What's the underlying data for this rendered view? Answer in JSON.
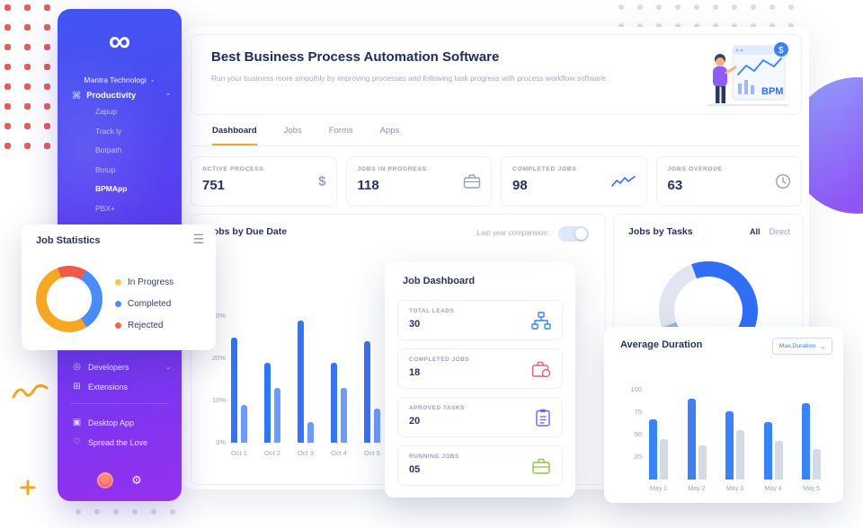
{
  "decor": {
    "dot_red": "#ee5a5a",
    "dot_gray": "#d9dde4",
    "accent_orange": "#f5a623",
    "primary_blue": "#2f6ef5",
    "sidebar_gradient": [
      "#4156f2",
      "#9531ef"
    ],
    "blob_gradient": [
      "#93a6ff",
      "#8f55f5"
    ]
  },
  "sidebar": {
    "brand": "Mantra Technologi",
    "productivity": {
      "label": "Productivity",
      "items": [
        "Zapup",
        "Track.ly",
        "Botpath",
        "Botup",
        "BPMApp",
        "PBX+"
      ],
      "active_item": "BPMApp"
    },
    "links": {
      "developers": "Developers",
      "extensions": "Extensions",
      "desktop_app": "Desktop App",
      "spread_the_love": "Spread the Love"
    }
  },
  "header": {
    "title": "Best Business Process Automation Software",
    "subtitle": "Run your business more smoothly by improving processes and following task progress with process workflow software.",
    "illustration_label": "BPM"
  },
  "tabs": [
    {
      "label": "Dashboard",
      "active": true
    },
    {
      "label": "Jobs",
      "active": false
    },
    {
      "label": "Forms",
      "active": false
    },
    {
      "label": "Apps",
      "active": false
    }
  ],
  "stats": [
    {
      "label": "ACTIVE PROCESS",
      "value": "751",
      "icon": "dollar-icon"
    },
    {
      "label": "JOBS IN PROGRESS",
      "value": "118",
      "icon": "briefcase-icon"
    },
    {
      "label": "COMPLETED JOBS",
      "value": "98",
      "icon": "chart-line-icon"
    },
    {
      "label": "JOBS OVERDUE",
      "value": "63",
      "icon": "clock-icon"
    }
  ],
  "jobs_by_due_date": {
    "title": "Jobs by Due Date",
    "toggle_label": "Last year comparision:",
    "toggle_on": true
  },
  "jobs_by_tasks": {
    "title": "Jobs by Tasks",
    "filters": [
      "All",
      "Direct"
    ],
    "active_filter": "All"
  },
  "job_statistics": {
    "title": "Job Statistics",
    "legend": [
      {
        "label": "In Progress",
        "color": "#f7c948"
      },
      {
        "label": "Completed",
        "color": "#4a8df8"
      },
      {
        "label": "Rejected",
        "color": "#f4694b"
      }
    ]
  },
  "job_dashboard": {
    "title": "Job Dashboard",
    "items": [
      {
        "label": "TOTAL LEADS",
        "value": "30",
        "icon": "flow-icon",
        "color": "#3b82f6"
      },
      {
        "label": "COMPLETED JOBS",
        "value": "18",
        "icon": "briefcase-icon",
        "color": "#ee5d6c"
      },
      {
        "label": "APROVED TASKS",
        "value": "20",
        "icon": "checklist-icon",
        "color": "#7b5cf0"
      },
      {
        "label": "RUNNING JOBS",
        "value": "05",
        "icon": "briefcase-icon",
        "color": "#8bc34a"
      }
    ]
  },
  "average_duration": {
    "title": "Average Duration",
    "dropdown_value": "Max.Duration"
  },
  "chart_data": [
    {
      "id": "jobs_by_due_date",
      "type": "bar",
      "title": "Jobs by Due Date",
      "categories": [
        "Oct 1",
        "Oct 2",
        "Oct 3",
        "Oct 4",
        "Oct 5"
      ],
      "series": [
        {
          "name": "current-year",
          "color": "#3575f2",
          "values": [
            25,
            19,
            29,
            19,
            24
          ]
        },
        {
          "name": "last-year",
          "color": "#6d9bf8",
          "values": [
            9,
            13,
            5,
            13,
            8
          ]
        }
      ],
      "y_ticks": [
        30,
        20,
        10,
        0
      ],
      "ylim": [
        0,
        30
      ],
      "ylabel_format": "percent",
      "legend_position": "none",
      "grid": false
    },
    {
      "id": "job_statistics",
      "type": "pie",
      "title": "Job Statistics",
      "start_angle": 30,
      "segments": [
        {
          "label": "Completed",
          "value": 33,
          "color": "#4a8df8"
        },
        {
          "label": "In Progress",
          "value": 53,
          "color": "#f6a723"
        },
        {
          "label": "Rejected",
          "value": 14,
          "color": "#ef5a4c"
        }
      ]
    },
    {
      "id": "jobs_by_tasks",
      "type": "pie",
      "title": "Jobs by Tasks",
      "start_angle": 250,
      "segments": [
        {
          "label": "light-segment",
          "value": 25,
          "color": "#dfe6f0"
        },
        {
          "label": "primary-segment",
          "value": 63,
          "color": "#2f6ef5"
        },
        {
          "label": "muted-segment",
          "value": 12,
          "color": "#9fb3d8"
        }
      ]
    },
    {
      "id": "average_duration",
      "type": "bar",
      "title": "Average Duration",
      "categories": [
        "May 1",
        "May 2",
        "May 3",
        "May 4",
        "May 5"
      ],
      "series": [
        {
          "name": "max-duration",
          "color": "#3b82f6",
          "values": [
            67,
            90,
            76,
            64,
            85
          ]
        },
        {
          "name": "min-duration",
          "color": "#d5dbe6",
          "values": [
            45,
            38,
            55,
            43,
            34
          ]
        }
      ],
      "y_ticks": [
        100,
        75,
        50,
        25
      ],
      "ylim": [
        0,
        100
      ],
      "legend_position": "none",
      "grid": false
    }
  ]
}
